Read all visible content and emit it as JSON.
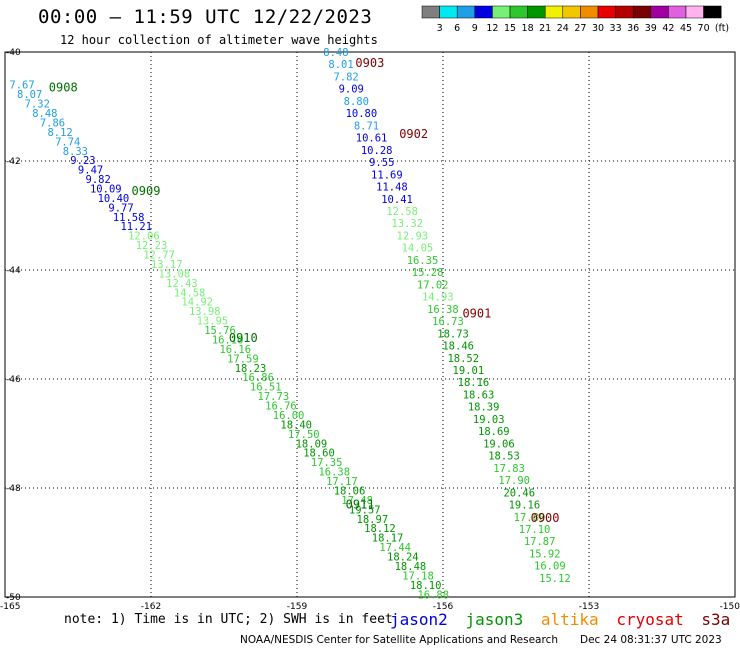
{
  "header": {
    "title": "00:00 – 11:59 UTC 12/22/2023",
    "subtitle": "12 hour collection of altimeter wave heights"
  },
  "scale": {
    "unit": "(ft)",
    "bins": [
      {
        "color": "#7f7f7f",
        "label": "3"
      },
      {
        "color": "#00e8f0",
        "label": "6"
      },
      {
        "color": "#1e9fe6",
        "label": "9"
      },
      {
        "color": "#0000e0",
        "label": "12"
      },
      {
        "color": "#78f078",
        "label": "15"
      },
      {
        "color": "#2ec82e",
        "label": "18"
      },
      {
        "color": "#009600",
        "label": "21"
      },
      {
        "color": "#f0f000",
        "label": "24"
      },
      {
        "color": "#f0c800",
        "label": "27"
      },
      {
        "color": "#f08c00",
        "label": "30"
      },
      {
        "color": "#e60000",
        "label": "33"
      },
      {
        "color": "#b40000",
        "label": "36"
      },
      {
        "color": "#780000",
        "label": "39"
      },
      {
        "color": "#a000a0",
        "label": "42"
      },
      {
        "color": "#e060e0",
        "label": "45"
      },
      {
        "color": "#ffb4f0",
        "label": "70"
      },
      {
        "color": "#000000",
        "label": ""
      }
    ]
  },
  "chart_data": {
    "type": "scatter",
    "title": "00:00 – 11:59 UTC 12/22/2023",
    "subtitle": "12 hour collection of altimeter wave heights",
    "xlim": [
      -165,
      -150
    ],
    "ylim": [
      -50,
      -40
    ],
    "xticks": [
      "-165",
      "-162",
      "-159",
      "-156",
      "-153",
      "-150"
    ],
    "yticks": [
      "-40",
      "-42",
      "-44",
      "-46",
      "-48",
      "-50"
    ],
    "grid": true,
    "time_labels": [
      {
        "text": "0908",
        "x": -164.1,
        "y": -40.65,
        "color": "#007000"
      },
      {
        "text": "0909",
        "x": -162.4,
        "y": -42.55,
        "color": "#007000"
      },
      {
        "text": "0910",
        "x": -160.4,
        "y": -45.25,
        "color": "#007000"
      },
      {
        "text": "0911",
        "x": -158.0,
        "y": -48.3,
        "color": "#007000"
      },
      {
        "text": "0903",
        "x": -157.8,
        "y": -40.2,
        "color": "#800000"
      },
      {
        "text": "0902",
        "x": -156.9,
        "y": -41.5,
        "color": "#800000"
      },
      {
        "text": "0901",
        "x": -155.6,
        "y": -44.8,
        "color": "#800000"
      },
      {
        "text": "0900",
        "x": -154.2,
        "y": -48.55,
        "color": "#800000"
      }
    ],
    "series": [
      {
        "name": "track-west",
        "x0": -164.65,
        "y0": -40.6,
        "x1": -156.2,
        "y1": -49.95,
        "values": [
          7.67,
          8.07,
          7.32,
          8.48,
          7.86,
          8.12,
          7.74,
          8.33,
          9.23,
          9.47,
          9.82,
          10.09,
          10.4,
          9.77,
          11.58,
          11.21,
          12.06,
          12.23,
          12.77,
          13.17,
          13.08,
          12.43,
          14.58,
          14.92,
          13.98,
          13.95,
          15.76,
          16.1,
          16.16,
          17.59,
          18.23,
          16.86,
          16.51,
          17.73,
          16.76,
          16.0,
          18.4,
          17.5,
          18.09,
          18.6,
          17.35,
          16.38,
          17.17,
          18.06,
          17.48,
          19.57,
          18.97,
          18.12,
          18.17,
          17.44,
          18.24,
          18.48,
          17.18,
          18.1,
          16.88
        ]
      },
      {
        "name": "track-east",
        "x0": -158.2,
        "y0": -40.0,
        "x1": -153.7,
        "y1": -49.65,
        "values": [
          8.48,
          8.01,
          7.82,
          9.09,
          8.8,
          10.8,
          8.71,
          10.61,
          10.28,
          9.55,
          11.69,
          11.48,
          10.41,
          12.58,
          13.32,
          12.93,
          14.05,
          16.35,
          15.28,
          17.02,
          14.93,
          16.38,
          16.73,
          18.73,
          18.46,
          18.52,
          19.01,
          18.16,
          18.63,
          18.39,
          19.03,
          18.69,
          19.06,
          18.53,
          17.83,
          17.9,
          20.46,
          19.16,
          17.8,
          17.1,
          17.87,
          15.92,
          16.09,
          15.12
        ]
      }
    ]
  },
  "footer": {
    "note": "note: 1) Time is in UTC; 2) SWH is in feet",
    "credit": "NOAA/NESDIS Center for Satellite Applications and Research",
    "date": "Dec 24 08:31:37 UTC 2023",
    "satellites": [
      {
        "name": "jason2",
        "color": "#0000e0"
      },
      {
        "name": "jason3",
        "color": "#009600"
      },
      {
        "name": "altika",
        "color": "#f08c00"
      },
      {
        "name": "cryosat",
        "color": "#e60000"
      },
      {
        "name": "s3a",
        "color": "#780000"
      }
    ]
  }
}
